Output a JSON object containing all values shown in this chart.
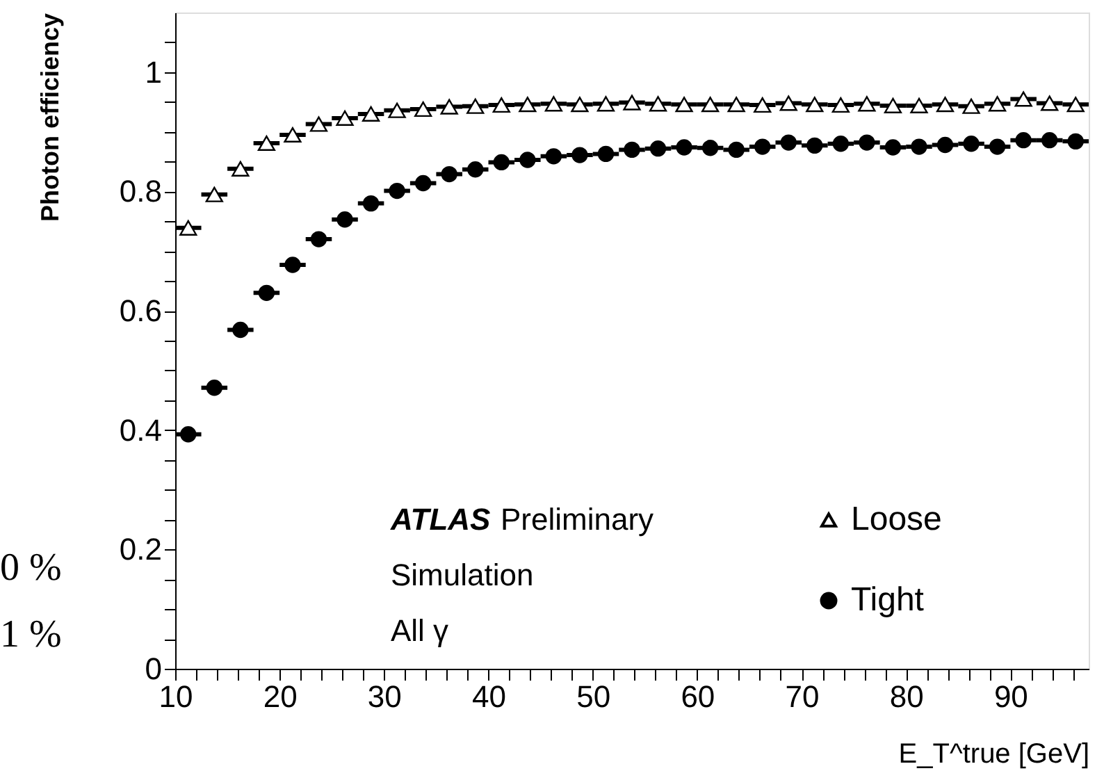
{
  "chart_data": {
    "type": "scatter",
    "ylabel": "Photon efficiency",
    "xlabel": "E_T^true [GeV]",
    "x": [
      11.25,
      13.75,
      16.25,
      18.75,
      21.25,
      23.75,
      26.25,
      28.75,
      31.25,
      33.75,
      36.25,
      38.75,
      41.25,
      43.75,
      46.25,
      48.75,
      51.25,
      53.75,
      56.25,
      58.75,
      61.25,
      63.75,
      66.25,
      68.75,
      71.25,
      73.75,
      76.25,
      78.75,
      81.25,
      83.75,
      86.25,
      88.75,
      91.25,
      93.75,
      96.25
    ],
    "series": [
      {
        "name": "Loose",
        "color": "#000000",
        "marker": "triangle",
        "values": [
          0.739,
          0.795,
          0.838,
          0.881,
          0.895,
          0.913,
          0.923,
          0.93,
          0.936,
          0.938,
          0.942,
          0.943,
          0.945,
          0.946,
          0.947,
          0.946,
          0.947,
          0.949,
          0.947,
          0.946,
          0.946,
          0.946,
          0.945,
          0.948,
          0.946,
          0.945,
          0.947,
          0.944,
          0.944,
          0.946,
          0.943,
          0.947,
          0.955,
          0.948,
          0.946
        ],
        "xerrors": [
          1.25,
          1.25,
          1.25,
          1.25,
          1.25,
          1.25,
          1.25,
          1.25,
          1.25,
          1.25,
          1.25,
          1.25,
          1.25,
          1.25,
          1.25,
          1.25,
          1.25,
          1.25,
          1.25,
          1.25,
          1.25,
          1.25,
          1.25,
          1.25,
          1.25,
          1.25,
          1.25,
          1.25,
          1.25,
          1.25,
          1.25,
          1.25,
          1.25,
          1.25,
          1.25
        ]
      },
      {
        "name": "Tight",
        "color": "#000000",
        "marker": "circle",
        "values": [
          0.393,
          0.471,
          0.568,
          0.63,
          0.677,
          0.72,
          0.753,
          0.78,
          0.801,
          0.814,
          0.829,
          0.837,
          0.849,
          0.853,
          0.859,
          0.861,
          0.863,
          0.87,
          0.872,
          0.874,
          0.873,
          0.87,
          0.875,
          0.882,
          0.877,
          0.88,
          0.882,
          0.874,
          0.875,
          0.878,
          0.88,
          0.875,
          0.886,
          0.886,
          0.884
        ],
        "xerrors": [
          1.25,
          1.25,
          1.25,
          1.25,
          1.25,
          1.25,
          1.25,
          1.25,
          1.25,
          1.25,
          1.25,
          1.25,
          1.25,
          1.25,
          1.25,
          1.25,
          1.25,
          1.25,
          1.25,
          1.25,
          1.25,
          1.25,
          1.25,
          1.25,
          1.25,
          1.25,
          1.25,
          1.25,
          1.25,
          1.25,
          1.25,
          1.25,
          1.25,
          1.25,
          1.25
        ]
      }
    ],
    "xlim": [
      10,
      97.5
    ],
    "ylim": [
      0,
      1.1
    ],
    "xticks": [
      10,
      {
        "value": 12,
        "label": null
      },
      {
        "value": 14,
        "label": null
      },
      {
        "value": 16,
        "label": null
      },
      {
        "value": 18,
        "label": null
      },
      20,
      {
        "value": 22,
        "label": null
      },
      {
        "value": 24,
        "label": null
      },
      {
        "value": 26,
        "label": null
      },
      {
        "value": 28,
        "label": null
      },
      30,
      {
        "value": 32,
        "label": null
      },
      {
        "value": 34,
        "label": null
      },
      {
        "value": 36,
        "label": null
      },
      {
        "value": 38,
        "label": null
      },
      40,
      {
        "value": 42,
        "label": null
      },
      {
        "value": 44,
        "label": null
      },
      {
        "value": 46,
        "label": null
      },
      {
        "value": 48,
        "label": null
      },
      50,
      {
        "value": 52,
        "label": null
      },
      {
        "value": 54,
        "label": null
      },
      {
        "value": 56,
        "label": null
      },
      {
        "value": 58,
        "label": null
      },
      60,
      {
        "value": 62,
        "label": null
      },
      {
        "value": 64,
        "label": null
      },
      {
        "value": 66,
        "label": null
      },
      {
        "value": 68,
        "label": null
      },
      70,
      {
        "value": 72,
        "label": null
      },
      {
        "value": 74,
        "label": null
      },
      {
        "value": 76,
        "label": null
      },
      {
        "value": 78,
        "label": null
      },
      80,
      {
        "value": 82,
        "label": null
      },
      {
        "value": 84,
        "label": null
      },
      {
        "value": 86,
        "label": null
      },
      {
        "value": 88,
        "label": null
      },
      90,
      {
        "value": 92,
        "label": null
      },
      {
        "value": 94,
        "label": null
      },
      {
        "value": 96,
        "label": null
      }
    ],
    "yticks": [
      0,
      {
        "value": 0.05,
        "label": null
      },
      {
        "value": 0.1,
        "label": null
      },
      {
        "value": 0.15,
        "label": null
      },
      0.2,
      {
        "value": 0.25,
        "label": null
      },
      {
        "value": 0.3,
        "label": null
      },
      {
        "value": 0.35,
        "label": null
      },
      0.4,
      {
        "value": 0.45,
        "label": null
      },
      {
        "value": 0.5,
        "label": null
      },
      {
        "value": 0.55,
        "label": null
      },
      0.6,
      {
        "value": 0.65,
        "label": null
      },
      {
        "value": 0.7,
        "label": null
      },
      {
        "value": 0.75,
        "label": null
      },
      0.8,
      {
        "value": 0.85,
        "label": null
      },
      {
        "value": 0.9,
        "label": null
      },
      {
        "value": 0.95,
        "label": null
      },
      1,
      {
        "value": 1.05,
        "label": null
      }
    ],
    "grid": false,
    "legend": "bottom right",
    "annotations": [
      "ATLAS Preliminary",
      "Simulation",
      "All γ",
      "0 %",
      "1 %"
    ]
  }
}
